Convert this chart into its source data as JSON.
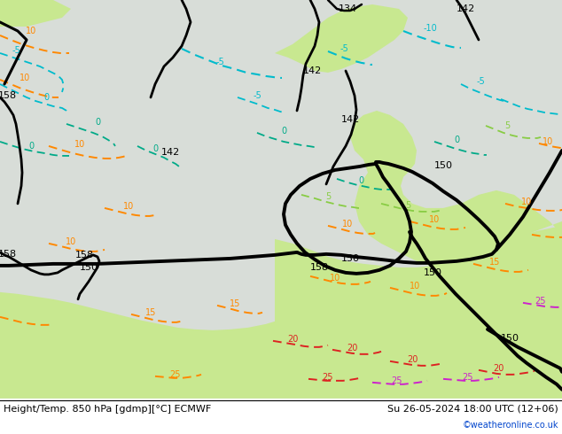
{
  "title_left": "Height/Temp. 850 hPa [gdmp][°C] ECMWF",
  "title_right": "Su 26-05-2024 18:00 UTC (12+06)",
  "credit": "©weatheronline.co.uk",
  "fig_width": 6.34,
  "fig_height": 4.9,
  "dpi": 100,
  "col_black": "#000000",
  "col_cyan": "#00bbcc",
  "col_teal": "#00aa88",
  "col_green": "#88cc44",
  "col_orange": "#ff8800",
  "col_red": "#dd2222",
  "col_magenta": "#cc22cc",
  "col_blue": "#0044cc",
  "bg_grey": "#d8ddd8",
  "bg_green_light": "#c8e890",
  "bg_green_mid": "#b8dd70",
  "label_fs": 7,
  "footer_fs": 8
}
